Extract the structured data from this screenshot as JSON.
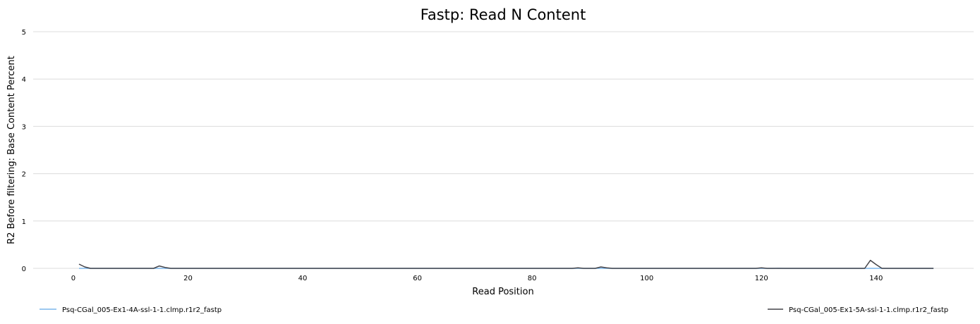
{
  "chart_data": {
    "type": "line",
    "title": "Fastp: Read N Content",
    "xlabel": "Read Position",
    "ylabel": "R2 Before filtering: Base Content Percent",
    "xlim": [
      -7,
      157
    ],
    "ylim": [
      0,
      5
    ],
    "x_ticks": [
      0,
      20,
      40,
      60,
      80,
      100,
      120,
      140
    ],
    "y_ticks": [
      0,
      1,
      2,
      3,
      4,
      5
    ],
    "grid": true,
    "legend_placement": "bottom",
    "series": [
      {
        "name": "Psq-CGal_005-Ex1-4A-ssl-1-1.clmp.r1r2_fastp",
        "color": "#7cb5ec",
        "x": [
          1,
          2,
          3,
          14,
          15,
          16,
          17,
          87,
          88,
          89,
          91,
          92,
          93,
          94,
          95,
          119,
          120,
          121,
          122,
          123,
          124,
          138,
          139,
          140,
          141,
          150
        ],
        "y": [
          0,
          0,
          0,
          0,
          0,
          0,
          0,
          0,
          0,
          0,
          0,
          0,
          0,
          0,
          0,
          0,
          0,
          0,
          0,
          0.005,
          0,
          0,
          0,
          0,
          0,
          0
        ]
      },
      {
        "name": "Psq-CGal_005-Ex1-5A-ssl-1-1.clmp.r1r2_fastp",
        "color": "#434348",
        "x": [
          1,
          2,
          3,
          14,
          15,
          16,
          17,
          87,
          88,
          89,
          91,
          92,
          93,
          94,
          95,
          119,
          120,
          121,
          122,
          123,
          124,
          138,
          139,
          140,
          141,
          150
        ],
        "y": [
          0.09,
          0.03,
          0,
          0,
          0.05,
          0.02,
          0,
          0,
          0.01,
          0,
          0,
          0.03,
          0.01,
          0,
          0,
          0,
          0.01,
          0,
          0,
          0,
          0,
          0,
          0.17,
          0.08,
          0,
          0
        ]
      }
    ]
  }
}
